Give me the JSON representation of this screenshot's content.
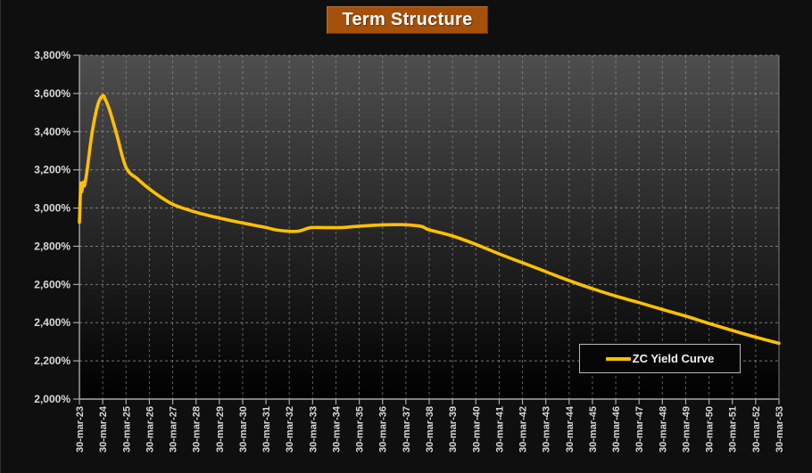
{
  "page": {
    "background": "#0f0f0f"
  },
  "title": {
    "text": "Term Structure",
    "bg_color": "#a5500b",
    "text_color": "#ffffff"
  },
  "legend": {
    "label": "ZC Yield Curve",
    "line_color": "#ffc000",
    "position": "bottom-right"
  },
  "colors": {
    "curve": "#ffc000",
    "plot_gradient_top": "#4e4e4e",
    "plot_gradient_bottom": "#000000",
    "gridline": "#9a9a9a",
    "axis": "#a8a8a8",
    "tick_label": "#d9d9d9"
  },
  "chart_data": {
    "type": "line",
    "title": "Term Structure",
    "unit": "%",
    "xlabel": "",
    "ylabel": "",
    "grid": true,
    "grid_style": "dashed",
    "legend_position": "bottom-right",
    "x_axis_label_rotation": -90,
    "ylim": [
      2000,
      3800
    ],
    "ytick_step": 200,
    "ytick_values": [
      2000,
      2200,
      2400,
      2600,
      2800,
      3000,
      3200,
      3400,
      3600,
      3800
    ],
    "ytick_labels": [
      "2,000%",
      "2,200%",
      "2,400%",
      "2,600%",
      "2,800%",
      "3,000%",
      "3,200%",
      "3,400%",
      "3,600%",
      "3,800%"
    ],
    "categories": [
      "30-mar-23",
      "30-mar-24",
      "30-mar-25",
      "30-mar-26",
      "30-mar-27",
      "30-mar-28",
      "30-mar-29",
      "30-mar-30",
      "30-mar-31",
      "30-mar-32",
      "30-mar-33",
      "30-mar-34",
      "30-mar-35",
      "30-mar-36",
      "30-mar-37",
      "30-mar-38",
      "30-mar-39",
      "30-mar-40",
      "30-mar-41",
      "30-mar-42",
      "30-mar-43",
      "30-mar-44",
      "30-mar-45",
      "30-mar-46",
      "30-mar-47",
      "30-mar-48",
      "30-mar-49",
      "30-mar-50",
      "30-mar-51",
      "30-mar-52",
      "30-mar-53"
    ],
    "series": [
      {
        "name": "ZC Yield Curve",
        "color": "#ffc000",
        "values_percent_at_categories": [
          2925,
          3588,
          3212,
          3100,
          3020,
          2978,
          2948,
          2922,
          2898,
          2878,
          2898,
          2897,
          2905,
          2912,
          2910,
          2886,
          2854,
          2810,
          2760,
          2714,
          2667,
          2620,
          2578,
          2539,
          2505,
          2469,
          2434,
          2396,
          2359,
          2324,
          2292
        ],
        "detail_points": [
          [
            0.0,
            2925
          ],
          [
            0.06,
            3125
          ],
          [
            0.1,
            3085
          ],
          [
            0.16,
            3135
          ],
          [
            0.22,
            3118
          ],
          [
            0.32,
            3190
          ],
          [
            0.55,
            3400
          ],
          [
            0.8,
            3545
          ],
          [
            1.0,
            3588
          ],
          [
            1.1,
            3572
          ],
          [
            1.3,
            3510
          ],
          [
            1.6,
            3385
          ],
          [
            2.0,
            3212
          ],
          [
            2.5,
            3152
          ],
          [
            3.0,
            3100
          ],
          [
            3.5,
            3056
          ],
          [
            4.0,
            3020
          ],
          [
            4.5,
            2997
          ],
          [
            5.0,
            2978
          ],
          [
            5.5,
            2962
          ],
          [
            6.0,
            2948
          ],
          [
            6.5,
            2934
          ],
          [
            7.0,
            2922
          ],
          [
            7.5,
            2910
          ],
          [
            8.0,
            2898
          ],
          [
            8.5,
            2884
          ],
          [
            9.0,
            2878
          ],
          [
            9.4,
            2879
          ],
          [
            9.8,
            2894
          ],
          [
            10.0,
            2898
          ],
          [
            10.7,
            2897
          ],
          [
            11.3,
            2898
          ],
          [
            12.0,
            2905
          ],
          [
            13.0,
            2912
          ],
          [
            13.8,
            2913
          ],
          [
            14.3,
            2910
          ],
          [
            14.7,
            2903
          ],
          [
            15.0,
            2886
          ],
          [
            16.0,
            2854
          ],
          [
            17.0,
            2810
          ],
          [
            18.0,
            2760
          ],
          [
            19.0,
            2714
          ],
          [
            20.0,
            2667
          ],
          [
            21.0,
            2620
          ],
          [
            22.0,
            2578
          ],
          [
            23.0,
            2539
          ],
          [
            24.0,
            2505
          ],
          [
            25.0,
            2469
          ],
          [
            26.0,
            2434
          ],
          [
            27.0,
            2396
          ],
          [
            28.0,
            2359
          ],
          [
            29.0,
            2324
          ],
          [
            30.0,
            2292
          ]
        ]
      }
    ]
  }
}
